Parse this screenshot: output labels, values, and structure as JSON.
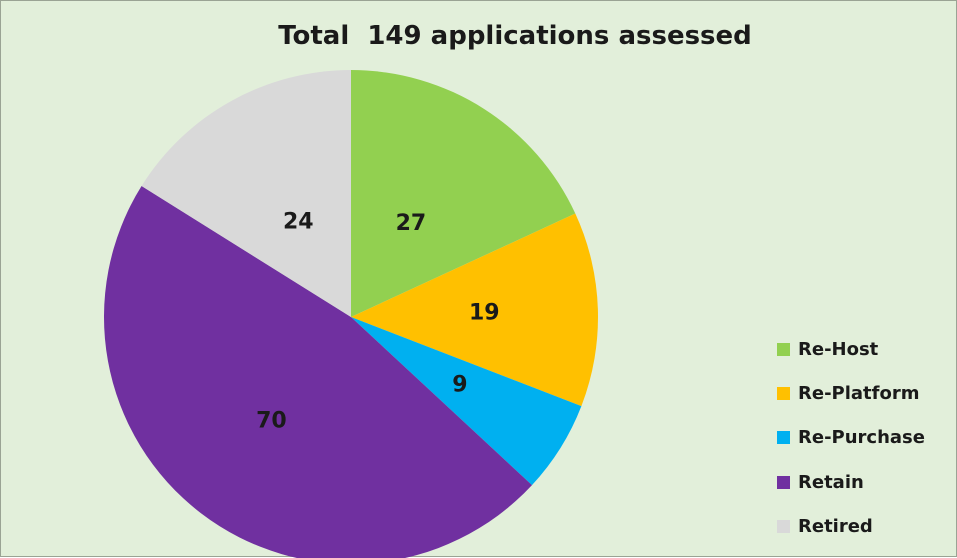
{
  "chart_data": {
    "type": "pie",
    "title": "Total  149 applications assessed",
    "categories": [
      "Re-Host",
      "Re-Platform",
      "Re-Purchase",
      "Retain",
      "Retired"
    ],
    "values": [
      27,
      19,
      9,
      70,
      24
    ],
    "colors": [
      "#92d050",
      "#ffc000",
      "#00b0f0",
      "#7030a0",
      "#d9d9d9"
    ],
    "data_labels": [
      "27",
      "19",
      "9",
      "70",
      "24"
    ],
    "start_angle_deg": 0,
    "direction": "clockwise",
    "legend_position": "right",
    "background": "#e2efda"
  }
}
